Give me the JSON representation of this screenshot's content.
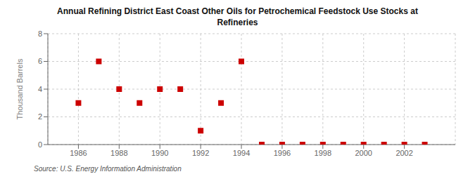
{
  "chart_data": {
    "type": "scatter",
    "title": "Annual Refining District East Coast Other Oils for Petrochemical Feedstock Use Stocks at\nRefineries",
    "ylabel": "Thousand Barrels",
    "annotations": [
      "Source: U.S. Energy Information Administration"
    ],
    "x": [
      1986,
      1987,
      1988,
      1989,
      1990,
      1991,
      1992,
      1993,
      1994,
      1995,
      1996,
      1997,
      1998,
      1999,
      2000,
      2001,
      2002,
      2003
    ],
    "values": [
      3,
      6,
      4,
      3,
      4,
      4,
      1,
      3,
      6,
      0,
      0,
      0,
      0,
      0,
      0,
      0,
      0,
      0
    ],
    "color": "#cc0000",
    "marker": "square",
    "xlim": [
      1984.5,
      2004.5
    ],
    "xticks": [
      1986,
      1988,
      1990,
      1992,
      1994,
      1996,
      1998,
      2000,
      2002
    ],
    "ylim": [
      0,
      8
    ],
    "yticks": [
      0,
      2,
      4,
      6,
      8
    ],
    "grid": true
  }
}
